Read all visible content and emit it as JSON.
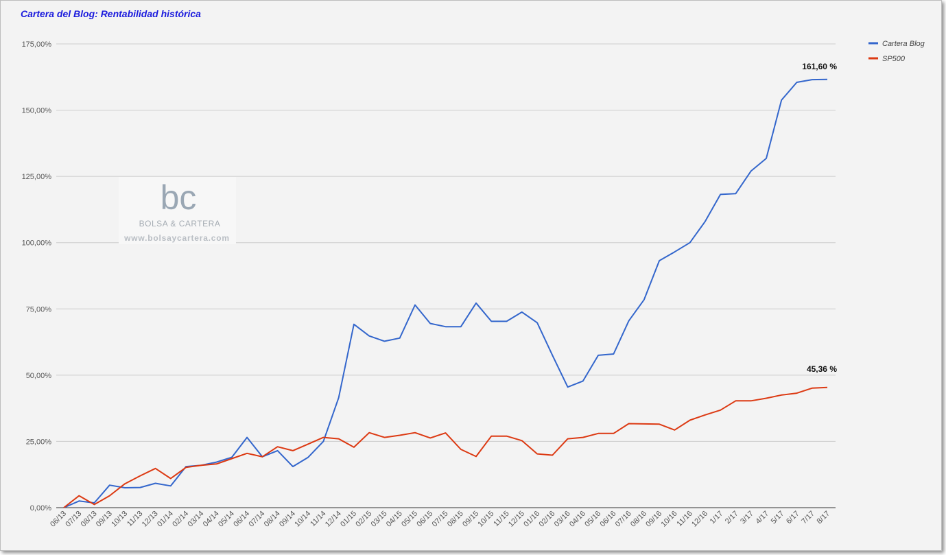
{
  "chart_data": {
    "type": "line",
    "title": "Cartera del Blog: Rentabilidad histórica",
    "xlabel": "",
    "ylabel": "",
    "ylim": [
      0,
      175
    ],
    "yticks": [
      "0,00%",
      "25,00%",
      "50,00%",
      "75,00%",
      "100,00%",
      "125,00%",
      "150,00%",
      "175,00%"
    ],
    "grid": true,
    "legend_position": "right",
    "categories": [
      "06/13",
      "07/13",
      "08/13",
      "09/13",
      "10/13",
      "11/13",
      "12/13",
      "01/14",
      "02/14",
      "03/14",
      "04/14",
      "05/14",
      "06/14",
      "07/14",
      "08/14",
      "09/14",
      "10/14",
      "11/14",
      "12/14",
      "01/15",
      "02/15",
      "03/15",
      "04/15",
      "05/15",
      "06/15",
      "07/15",
      "08/15",
      "09/15",
      "10/15",
      "11/15",
      "12/15",
      "01/16",
      "02/16",
      "03/16",
      "04/16",
      "05/16",
      "06/16",
      "07/16",
      "08/16",
      "09/16",
      "10/16",
      "11/16",
      "12/16",
      "1/17",
      "2/17",
      "3/17",
      "4/17",
      "5/17",
      "6/17",
      "7/17",
      "8/17"
    ],
    "series": [
      {
        "name": "Cartera Blog",
        "color": "#3366cc",
        "values": [
          0,
          2.5,
          1.8,
          8.5,
          7.5,
          7.6,
          9.2,
          8.2,
          15.5,
          16.0,
          17.2,
          19.0,
          26.5,
          19.2,
          21.5,
          15.5,
          19.0,
          25.0,
          41.5,
          69.2,
          64.8,
          62.8,
          64.0,
          76.5,
          69.5,
          68.3,
          68.3,
          77.2,
          70.3,
          70.3,
          73.8,
          69.8,
          57.5,
          45.5,
          47.8,
          57.5,
          58.0,
          70.5,
          78.5,
          93.2,
          96.5,
          100.0,
          108.0,
          118.2,
          118.5,
          127.0,
          131.8,
          153.8,
          160.5,
          161.5,
          161.6
        ],
        "end_label": "161,60 %"
      },
      {
        "name": "SP500",
        "color": "#dc3912",
        "values": [
          0,
          4.5,
          1.2,
          4.5,
          9.0,
          12.0,
          14.8,
          11.0,
          15.2,
          16.0,
          16.5,
          18.5,
          20.5,
          19.2,
          23.0,
          21.5,
          24.0,
          26.5,
          26.0,
          22.8,
          28.3,
          26.5,
          27.3,
          28.3,
          26.3,
          28.2,
          22.0,
          19.3,
          27.0,
          27.0,
          25.3,
          20.3,
          19.8,
          26.0,
          26.5,
          28.0,
          28.0,
          31.7,
          31.6,
          31.5,
          29.3,
          33.0,
          35.0,
          36.8,
          40.3,
          40.3,
          41.3,
          42.5,
          43.2,
          45.1,
          45.36
        ],
        "end_label": "45,36 %"
      }
    ]
  },
  "watermark": {
    "logo_text": "bc",
    "name": "BOLSA & CARTERA",
    "url": "www.bolsaycartera.com"
  }
}
